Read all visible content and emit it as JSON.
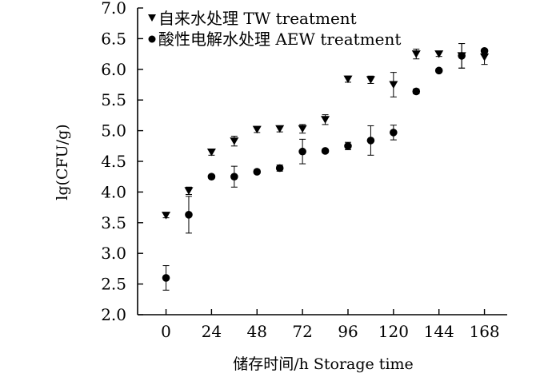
{
  "chart_data": {
    "type": "scatter",
    "xlabel": "储存时间/h Storage time",
    "ylabel": "lg(CFU/g)",
    "xlim": [
      -15,
      180
    ],
    "ylim": [
      2.0,
      7.0
    ],
    "x_ticks": [
      0,
      24,
      48,
      72,
      96,
      120,
      144,
      168
    ],
    "x_tick_labels": [
      "0",
      "24",
      "48",
      "72",
      "96",
      "120",
      "144",
      "168"
    ],
    "y_ticks": [
      2.0,
      2.5,
      3.0,
      3.5,
      4.0,
      4.5,
      5.0,
      5.5,
      6.0,
      6.5,
      7.0
    ],
    "y_tick_labels": [
      "2.0",
      "2.5",
      "3.0",
      "3.5",
      "4.0",
      "4.5",
      "5.0",
      "5.5",
      "6.0",
      "6.5",
      "7.0"
    ],
    "legend_position": "top-left",
    "series": [
      {
        "name": "自来水处理 TW treatment",
        "marker": "triangle-down",
        "color": "#000000",
        "x": [
          0,
          12,
          24,
          36,
          48,
          60,
          72,
          84,
          96,
          108,
          120,
          132,
          144,
          156,
          168
        ],
        "y": [
          3.62,
          4.02,
          4.65,
          4.83,
          5.02,
          5.03,
          5.03,
          5.18,
          5.84,
          5.83,
          5.75,
          6.25,
          6.25,
          6.22,
          6.2
        ],
        "err": [
          0.04,
          0.06,
          0.05,
          0.08,
          0.05,
          0.05,
          0.07,
          0.08,
          0.05,
          0.06,
          0.2,
          0.08,
          0.04,
          0.2,
          0.12
        ]
      },
      {
        "name": "酸性电解水处理 AEW treatment",
        "marker": "circle",
        "color": "#000000",
        "x": [
          0,
          12,
          24,
          36,
          48,
          60,
          72,
          84,
          96,
          108,
          120,
          132,
          144,
          156,
          168
        ],
        "y": [
          2.6,
          3.63,
          4.25,
          4.25,
          4.33,
          4.39,
          4.66,
          4.67,
          4.75,
          4.84,
          4.97,
          5.64,
          5.98,
          6.22,
          6.3
        ],
        "err": [
          0.2,
          0.3,
          0.03,
          0.17,
          0.03,
          0.05,
          0.2,
          0.03,
          0.06,
          0.24,
          0.12,
          0.04,
          0.03,
          0.2,
          0.03
        ]
      }
    ]
  }
}
